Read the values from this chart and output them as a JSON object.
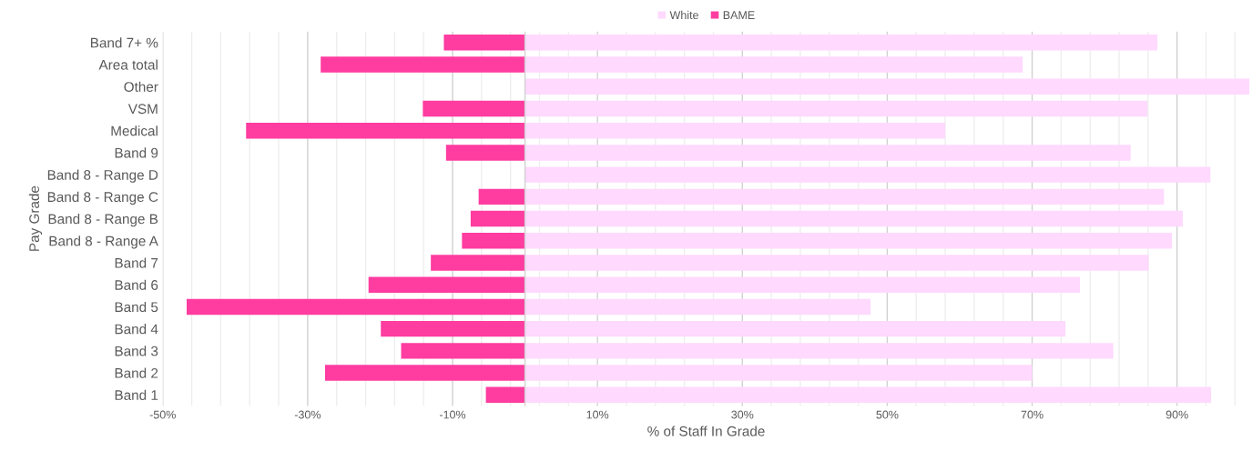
{
  "chart_data": {
    "type": "bar",
    "orientation": "horizontal",
    "stacked": true,
    "xlabel": "% of Staff In Grade",
    "ylabel": "Pay Grade",
    "categories": [
      "Band 7+ %",
      "Area total",
      "Other",
      "VSM",
      "Medical",
      "Band 9",
      "Band 8 - Range D",
      "Band 8 - Range C",
      "Band 8 - Range B",
      "Band 8 - Range A",
      "Band 7",
      "Band 6",
      "Band 5",
      "Band 4",
      "Band 3",
      "Band 2",
      "Band 1"
    ],
    "series": [
      {
        "name": "White",
        "color": "#ffd9fe",
        "values": [
          87.3,
          68.7,
          100,
          85.9,
          58.0,
          83.6,
          94.6,
          88.2,
          90.8,
          89.3,
          86.1,
          76.6,
          47.7,
          74.6,
          81.2,
          70.0,
          94.7
        ]
      },
      {
        "name": "BAME",
        "color": "#ff3ca0",
        "values": [
          -11.2,
          -28.2,
          0,
          -14.1,
          -38.5,
          -10.9,
          0,
          -6.4,
          -7.5,
          -8.7,
          -13.0,
          -21.6,
          -46.7,
          -19.9,
          -17.1,
          -27.6,
          -5.4
        ]
      }
    ],
    "xlim": [
      -50,
      100
    ],
    "xticks": [
      {
        "value": -50,
        "label": "-50%"
      },
      {
        "value": -46,
        "label": null
      },
      {
        "value": -42,
        "label": null
      },
      {
        "value": -38,
        "label": null
      },
      {
        "value": -34,
        "label": null
      },
      {
        "value": -30,
        "label": "-30%"
      },
      {
        "value": -26,
        "label": null
      },
      {
        "value": -22,
        "label": null
      },
      {
        "value": -18,
        "label": null
      },
      {
        "value": -14,
        "label": null
      },
      {
        "value": -10,
        "label": "-10%"
      },
      {
        "value": -6,
        "label": null
      },
      {
        "value": -2,
        "label": null
      },
      {
        "value": 2,
        "label": null
      },
      {
        "value": 6,
        "label": null
      },
      {
        "value": 10,
        "label": "10%"
      },
      {
        "value": 14,
        "label": null
      },
      {
        "value": 18,
        "label": null
      },
      {
        "value": 22,
        "label": null
      },
      {
        "value": 26,
        "label": null
      },
      {
        "value": 30,
        "label": "30%"
      },
      {
        "value": 34,
        "label": null
      },
      {
        "value": 38,
        "label": null
      },
      {
        "value": 42,
        "label": null
      },
      {
        "value": 46,
        "label": null
      },
      {
        "value": 50,
        "label": "50%"
      },
      {
        "value": 54,
        "label": null
      },
      {
        "value": 58,
        "label": null
      },
      {
        "value": 62,
        "label": null
      },
      {
        "value": 66,
        "label": null
      },
      {
        "value": 70,
        "label": "70%"
      },
      {
        "value": 74,
        "label": null
      },
      {
        "value": 78,
        "label": null
      },
      {
        "value": 82,
        "label": null
      },
      {
        "value": 86,
        "label": null
      },
      {
        "value": 90,
        "label": "90%"
      },
      {
        "value": 94,
        "label": null
      },
      {
        "value": 98,
        "label": null
      }
    ],
    "grid": "x",
    "legend": "top"
  }
}
